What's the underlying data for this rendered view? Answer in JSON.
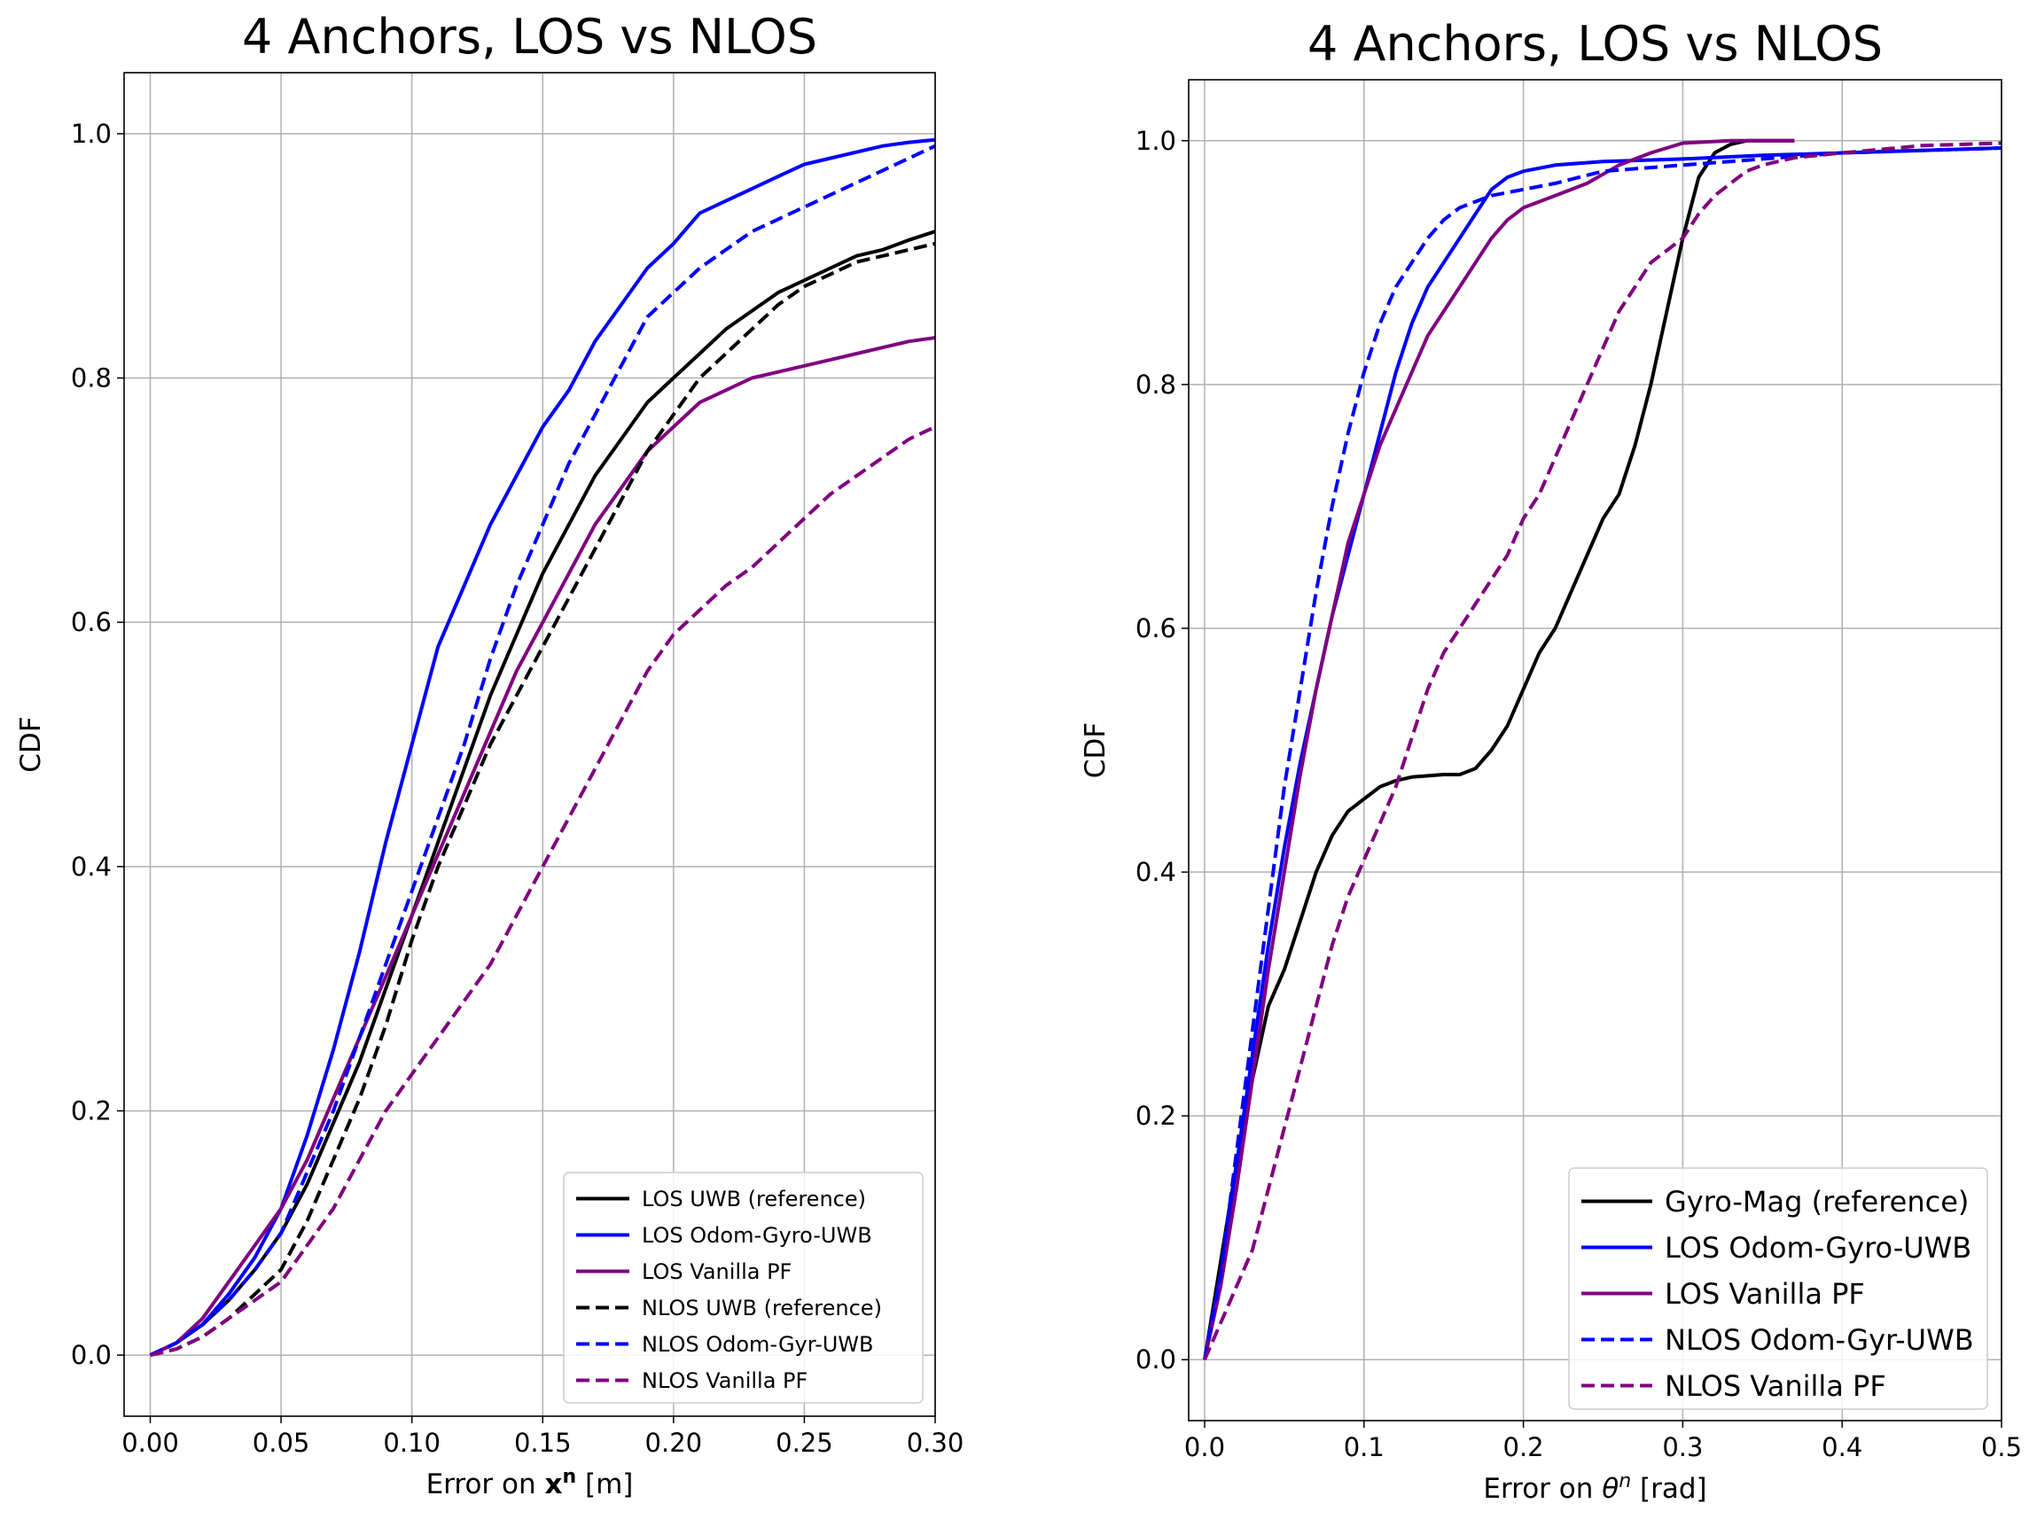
{
  "chart_data": [
    {
      "type": "line",
      "title": "4 Anchors, LOS vs NLOS",
      "xlabel": "Error on ",
      "xlabel_symbol": "x",
      "xlabel_sup": "n",
      "xlabel_unit": " [m]",
      "ylabel": "CDF",
      "xlim": [
        -0.01,
        0.3
      ],
      "ylim": [
        -0.05,
        1.05
      ],
      "xticks": [
        0.0,
        0.05,
        0.1,
        0.15,
        0.2,
        0.25,
        0.3
      ],
      "xtick_labels": [
        "0.00",
        "0.05",
        "0.10",
        "0.15",
        "0.20",
        "0.25",
        "0.30"
      ],
      "yticks": [
        0.0,
        0.2,
        0.4,
        0.6,
        0.8,
        1.0
      ],
      "ytick_labels": [
        "0.0",
        "0.2",
        "0.4",
        "0.6",
        "0.8",
        "1.0"
      ],
      "grid": true,
      "legend_position": "lower-right",
      "series": [
        {
          "name": "LOS UWB (reference)",
          "color": "#000000",
          "style": "solid",
          "x": [
            0,
            0.01,
            0.02,
            0.03,
            0.04,
            0.05,
            0.06,
            0.07,
            0.08,
            0.09,
            0.1,
            0.11,
            0.12,
            0.13,
            0.14,
            0.15,
            0.16,
            0.17,
            0.18,
            0.19,
            0.2,
            0.21,
            0.22,
            0.23,
            0.24,
            0.25,
            0.26,
            0.27,
            0.28,
            0.29,
            0.3
          ],
          "y": [
            0,
            0.01,
            0.025,
            0.045,
            0.07,
            0.1,
            0.14,
            0.19,
            0.24,
            0.3,
            0.36,
            0.42,
            0.48,
            0.54,
            0.59,
            0.64,
            0.68,
            0.72,
            0.75,
            0.78,
            0.8,
            0.82,
            0.84,
            0.855,
            0.87,
            0.88,
            0.89,
            0.9,
            0.905,
            0.913,
            0.92
          ]
        },
        {
          "name": "LOS Odom-Gyro-UWB",
          "color": "#0000ff",
          "style": "solid",
          "x": [
            0,
            0.01,
            0.02,
            0.03,
            0.04,
            0.05,
            0.06,
            0.07,
            0.08,
            0.09,
            0.1,
            0.11,
            0.12,
            0.13,
            0.14,
            0.15,
            0.16,
            0.17,
            0.18,
            0.19,
            0.2,
            0.21,
            0.22,
            0.23,
            0.24,
            0.25,
            0.26,
            0.27,
            0.28,
            0.29,
            0.3
          ],
          "y": [
            0,
            0.01,
            0.025,
            0.05,
            0.08,
            0.12,
            0.18,
            0.25,
            0.33,
            0.42,
            0.5,
            0.58,
            0.63,
            0.68,
            0.72,
            0.76,
            0.79,
            0.83,
            0.86,
            0.89,
            0.91,
            0.935,
            0.945,
            0.955,
            0.965,
            0.975,
            0.98,
            0.985,
            0.99,
            0.993,
            0.995
          ]
        },
        {
          "name": "LOS Vanilla PF",
          "color": "#800080",
          "style": "solid",
          "x": [
            0,
            0.01,
            0.02,
            0.03,
            0.04,
            0.05,
            0.06,
            0.07,
            0.08,
            0.09,
            0.1,
            0.11,
            0.12,
            0.13,
            0.14,
            0.15,
            0.16,
            0.17,
            0.18,
            0.19,
            0.2,
            0.21,
            0.22,
            0.23,
            0.24,
            0.25,
            0.26,
            0.27,
            0.28,
            0.29,
            0.3
          ],
          "y": [
            0,
            0.01,
            0.03,
            0.06,
            0.09,
            0.12,
            0.16,
            0.21,
            0.26,
            0.31,
            0.36,
            0.41,
            0.46,
            0.51,
            0.56,
            0.6,
            0.64,
            0.68,
            0.71,
            0.74,
            0.76,
            0.78,
            0.79,
            0.8,
            0.805,
            0.81,
            0.815,
            0.82,
            0.825,
            0.83,
            0.833
          ]
        },
        {
          "name": "NLOS UWB (reference)",
          "color": "#000000",
          "style": "dashed",
          "x": [
            0,
            0.01,
            0.02,
            0.03,
            0.04,
            0.05,
            0.06,
            0.07,
            0.08,
            0.09,
            0.1,
            0.11,
            0.12,
            0.13,
            0.14,
            0.15,
            0.16,
            0.17,
            0.18,
            0.19,
            0.2,
            0.21,
            0.22,
            0.23,
            0.24,
            0.25,
            0.26,
            0.27,
            0.28,
            0.29,
            0.3
          ],
          "y": [
            0,
            0.005,
            0.015,
            0.03,
            0.05,
            0.07,
            0.11,
            0.16,
            0.21,
            0.27,
            0.34,
            0.4,
            0.45,
            0.5,
            0.54,
            0.58,
            0.62,
            0.66,
            0.7,
            0.74,
            0.77,
            0.8,
            0.82,
            0.84,
            0.86,
            0.875,
            0.885,
            0.895,
            0.9,
            0.905,
            0.91
          ]
        },
        {
          "name": "NLOS Odom-Gyr-UWB",
          "color": "#0000ff",
          "style": "dashed",
          "x": [
            0,
            0.01,
            0.02,
            0.03,
            0.04,
            0.05,
            0.06,
            0.07,
            0.08,
            0.09,
            0.1,
            0.11,
            0.12,
            0.13,
            0.14,
            0.15,
            0.16,
            0.17,
            0.18,
            0.19,
            0.2,
            0.21,
            0.22,
            0.23,
            0.24,
            0.25,
            0.26,
            0.27,
            0.28,
            0.29,
            0.3
          ],
          "y": [
            0,
            0.01,
            0.025,
            0.045,
            0.07,
            0.1,
            0.15,
            0.2,
            0.26,
            0.32,
            0.38,
            0.44,
            0.5,
            0.57,
            0.63,
            0.68,
            0.73,
            0.77,
            0.81,
            0.85,
            0.87,
            0.89,
            0.905,
            0.92,
            0.93,
            0.94,
            0.95,
            0.96,
            0.97,
            0.98,
            0.99
          ]
        },
        {
          "name": "NLOS Vanilla PF",
          "color": "#800080",
          "style": "dashed",
          "x": [
            0,
            0.01,
            0.02,
            0.03,
            0.04,
            0.05,
            0.06,
            0.07,
            0.08,
            0.09,
            0.1,
            0.11,
            0.12,
            0.13,
            0.14,
            0.15,
            0.16,
            0.17,
            0.18,
            0.19,
            0.2,
            0.21,
            0.22,
            0.23,
            0.24,
            0.25,
            0.26,
            0.27,
            0.28,
            0.29,
            0.3
          ],
          "y": [
            0,
            0.005,
            0.015,
            0.03,
            0.045,
            0.06,
            0.09,
            0.12,
            0.16,
            0.2,
            0.23,
            0.26,
            0.29,
            0.32,
            0.36,
            0.4,
            0.44,
            0.48,
            0.52,
            0.56,
            0.59,
            0.61,
            0.63,
            0.645,
            0.665,
            0.685,
            0.705,
            0.72,
            0.735,
            0.75,
            0.76
          ]
        }
      ]
    },
    {
      "type": "line",
      "title": "4 Anchors, LOS vs NLOS",
      "xlabel": "Error on ",
      "xlabel_symbol": "θ",
      "xlabel_sup": "n",
      "xlabel_unit": " [rad]",
      "ylabel": "CDF",
      "xlim": [
        -0.01,
        0.5
      ],
      "ylim": [
        -0.05,
        1.05
      ],
      "xticks": [
        0.0,
        0.1,
        0.2,
        0.3,
        0.4,
        0.5
      ],
      "xtick_labels": [
        "0.0",
        "0.1",
        "0.2",
        "0.3",
        "0.4",
        "0.5"
      ],
      "yticks": [
        0.0,
        0.2,
        0.4,
        0.6,
        0.8,
        1.0
      ],
      "ytick_labels": [
        "0.0",
        "0.2",
        "0.4",
        "0.6",
        "0.8",
        "1.0"
      ],
      "grid": true,
      "legend_position": "lower-right",
      "series": [
        {
          "name": "Gyro-Mag (reference)",
          "color": "#000000",
          "style": "solid",
          "x": [
            0,
            0.01,
            0.02,
            0.03,
            0.04,
            0.05,
            0.06,
            0.07,
            0.08,
            0.09,
            0.1,
            0.11,
            0.12,
            0.13,
            0.14,
            0.15,
            0.16,
            0.17,
            0.18,
            0.19,
            0.2,
            0.21,
            0.22,
            0.23,
            0.24,
            0.25,
            0.26,
            0.27,
            0.28,
            0.29,
            0.3,
            0.31,
            0.32,
            0.33,
            0.34,
            0.35,
            0.37
          ],
          "y": [
            0,
            0.08,
            0.16,
            0.23,
            0.29,
            0.32,
            0.36,
            0.4,
            0.43,
            0.45,
            0.46,
            0.47,
            0.475,
            0.478,
            0.479,
            0.48,
            0.48,
            0.485,
            0.5,
            0.52,
            0.55,
            0.58,
            0.6,
            0.63,
            0.66,
            0.69,
            0.71,
            0.75,
            0.8,
            0.86,
            0.92,
            0.97,
            0.99,
            0.997,
            1.0,
            1.0,
            1.0
          ]
        },
        {
          "name": "LOS Odom-Gyro-UWB",
          "color": "#0000ff",
          "style": "solid",
          "x": [
            0,
            0.01,
            0.02,
            0.03,
            0.04,
            0.05,
            0.06,
            0.07,
            0.08,
            0.09,
            0.1,
            0.11,
            0.12,
            0.13,
            0.14,
            0.15,
            0.16,
            0.17,
            0.18,
            0.19,
            0.2,
            0.22,
            0.25,
            0.3,
            0.35,
            0.4,
            0.45,
            0.5
          ],
          "y": [
            0,
            0.07,
            0.16,
            0.25,
            0.34,
            0.42,
            0.49,
            0.55,
            0.61,
            0.66,
            0.71,
            0.76,
            0.81,
            0.85,
            0.88,
            0.9,
            0.92,
            0.94,
            0.96,
            0.97,
            0.975,
            0.98,
            0.983,
            0.985,
            0.988,
            0.99,
            0.992,
            0.994
          ]
        },
        {
          "name": "LOS Vanilla PF",
          "color": "#800080",
          "style": "solid",
          "x": [
            0,
            0.01,
            0.02,
            0.03,
            0.04,
            0.05,
            0.06,
            0.07,
            0.08,
            0.09,
            0.1,
            0.11,
            0.12,
            0.13,
            0.14,
            0.15,
            0.16,
            0.17,
            0.18,
            0.19,
            0.2,
            0.22,
            0.24,
            0.26,
            0.28,
            0.3,
            0.33,
            0.37
          ],
          "y": [
            0,
            0.06,
            0.14,
            0.23,
            0.32,
            0.4,
            0.48,
            0.55,
            0.61,
            0.67,
            0.71,
            0.75,
            0.78,
            0.81,
            0.84,
            0.86,
            0.88,
            0.9,
            0.92,
            0.935,
            0.945,
            0.955,
            0.965,
            0.98,
            0.99,
            0.998,
            1.0,
            1.0
          ]
        },
        {
          "name": "NLOS Odom-Gyr-UWB",
          "color": "#0000ff",
          "style": "dashed",
          "x": [
            0,
            0.01,
            0.02,
            0.03,
            0.04,
            0.05,
            0.06,
            0.07,
            0.08,
            0.09,
            0.1,
            0.11,
            0.12,
            0.13,
            0.14,
            0.15,
            0.16,
            0.17,
            0.18,
            0.2,
            0.22,
            0.25,
            0.3,
            0.35,
            0.4,
            0.45,
            0.5
          ],
          "y": [
            0,
            0.07,
            0.17,
            0.27,
            0.37,
            0.47,
            0.55,
            0.63,
            0.7,
            0.76,
            0.81,
            0.85,
            0.88,
            0.9,
            0.92,
            0.935,
            0.945,
            0.95,
            0.955,
            0.96,
            0.965,
            0.975,
            0.98,
            0.985,
            0.99,
            0.992,
            0.994
          ]
        },
        {
          "name": "NLOS Vanilla PF",
          "color": "#800080",
          "style": "dashed",
          "x": [
            0,
            0.01,
            0.02,
            0.03,
            0.04,
            0.05,
            0.06,
            0.07,
            0.08,
            0.09,
            0.1,
            0.11,
            0.12,
            0.13,
            0.14,
            0.15,
            0.16,
            0.17,
            0.18,
            0.19,
            0.2,
            0.21,
            0.22,
            0.23,
            0.24,
            0.25,
            0.26,
            0.27,
            0.28,
            0.29,
            0.3,
            0.31,
            0.32,
            0.33,
            0.34,
            0.35,
            0.37,
            0.4,
            0.45,
            0.5
          ],
          "y": [
            0,
            0.03,
            0.06,
            0.09,
            0.14,
            0.19,
            0.24,
            0.29,
            0.34,
            0.38,
            0.41,
            0.44,
            0.47,
            0.51,
            0.55,
            0.58,
            0.6,
            0.62,
            0.64,
            0.66,
            0.69,
            0.71,
            0.74,
            0.77,
            0.8,
            0.83,
            0.86,
            0.88,
            0.9,
            0.91,
            0.92,
            0.94,
            0.955,
            0.965,
            0.975,
            0.98,
            0.986,
            0.99,
            0.996,
            0.998
          ]
        }
      ]
    }
  ]
}
